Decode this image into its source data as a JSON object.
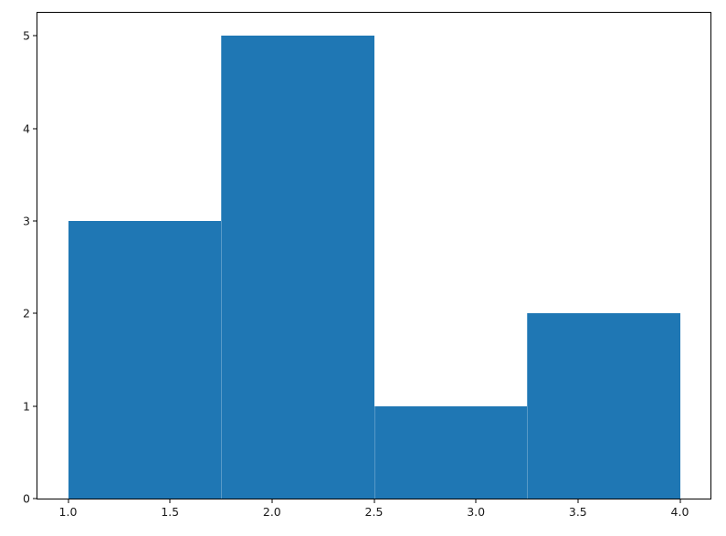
{
  "chart_data": {
    "type": "bar",
    "subtype": "histogram",
    "bin_edges": [
      1.0,
      1.75,
      2.5,
      3.25,
      4.0
    ],
    "counts": [
      3,
      5,
      1,
      2
    ],
    "x_ticks": [
      1.0,
      1.5,
      2.0,
      2.5,
      3.0,
      3.5,
      4.0
    ],
    "x_tick_labels": [
      "1.0",
      "1.5",
      "2.0",
      "2.5",
      "3.0",
      "3.5",
      "4.0"
    ],
    "y_ticks": [
      0,
      1,
      2,
      3,
      4,
      5
    ],
    "y_tick_labels": [
      "0",
      "1",
      "2",
      "3",
      "4",
      "5"
    ],
    "xlim": [
      0.85,
      4.15
    ],
    "ylim": [
      0,
      5.25
    ],
    "bar_color": "#1f77b4",
    "spine_color": "#000000",
    "background_color": "#ffffff",
    "grid": false,
    "legend": null
  }
}
